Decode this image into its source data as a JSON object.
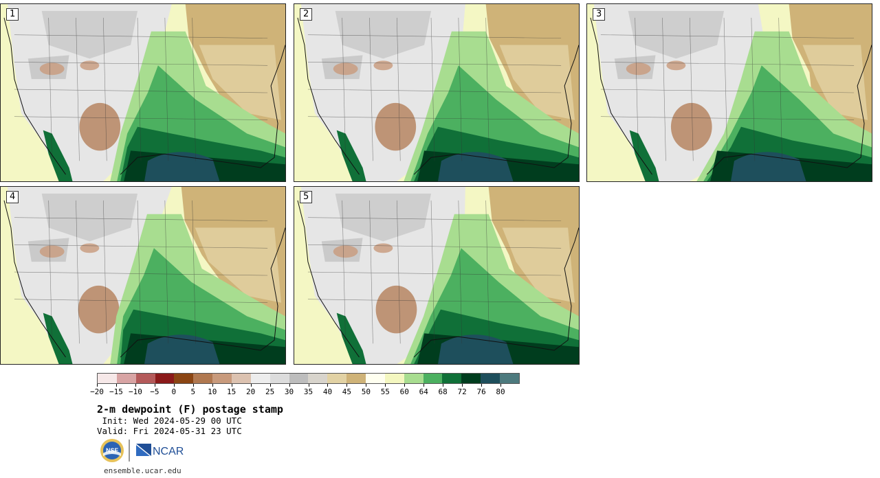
{
  "stamps": [
    {
      "label": "1"
    },
    {
      "label": "2"
    },
    {
      "label": "3"
    },
    {
      "label": "4"
    },
    {
      "label": "5"
    }
  ],
  "colorbar": {
    "colors": [
      "#f6e8e8",
      "#d8a4a4",
      "#b45a5a",
      "#8b1a1a",
      "#8b4513",
      "#b07850",
      "#c89a7c",
      "#dcc2b0",
      "#ededed",
      "#dcdcdc",
      "#bdbdbd",
      "#d8d4cc",
      "#e2d2a4",
      "#cfb378",
      "#fffff0",
      "#f4f7c0",
      "#a8dd90",
      "#4cb060",
      "#107038",
      "#003d1e",
      "#1e4f5c",
      "#4d7a7e"
    ],
    "tick_labels": [
      "−20",
      "−15",
      "−10",
      "−5",
      "0",
      "5",
      "10",
      "15",
      "20",
      "25",
      "30",
      "35",
      "40",
      "45",
      "50",
      "55",
      "60",
      "64",
      "68",
      "72",
      "76",
      "80"
    ]
  },
  "title": "2-m dewpoint (F) postage stamp",
  "init": " Init: Wed 2024-05-29 00 UTC",
  "valid": "Valid: Fri 2024-05-31 23 UTC",
  "logos": {
    "nsf": "NSF",
    "ncar": "NCAR"
  },
  "url": "ensemble.ucar.edu"
}
